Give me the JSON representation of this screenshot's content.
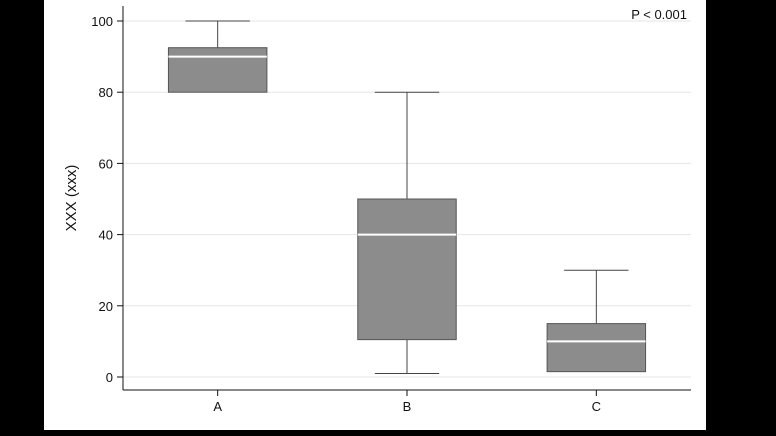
{
  "chart_data": {
    "type": "box",
    "ylabel": "XXX (xxx)",
    "xlabel": "",
    "ylim": [
      0,
      100
    ],
    "yticks": [
      0,
      20,
      40,
      60,
      80,
      100
    ],
    "grid": true,
    "annotation": "P < 0.001",
    "box_color": "#8c8c8c",
    "median_color": "#ffffff",
    "categories": [
      "A",
      "B",
      "C"
    ],
    "boxes": [
      {
        "category": "A",
        "min": 80,
        "q1": 80,
        "median": 90,
        "q3": 92.5,
        "max": 100
      },
      {
        "category": "B",
        "min": 1,
        "q1": 10.5,
        "median": 40,
        "q3": 50,
        "max": 80
      },
      {
        "category": "C",
        "min": 1.5,
        "q1": 1.5,
        "median": 10,
        "q3": 15,
        "max": 30
      }
    ]
  }
}
